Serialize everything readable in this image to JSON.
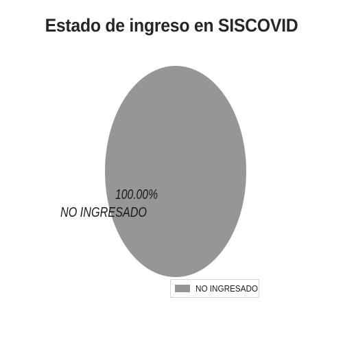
{
  "chart_data": {
    "type": "pie",
    "title": "Estado de ingreso en SISCOVID",
    "slices": [
      {
        "label": "NO INGRESADO",
        "value": 100.0,
        "percent_label": "100.00%",
        "color": "#969696"
      }
    ],
    "legend": {
      "placement": "bottom-right",
      "entries": [
        "NO INGRESADO"
      ]
    }
  }
}
